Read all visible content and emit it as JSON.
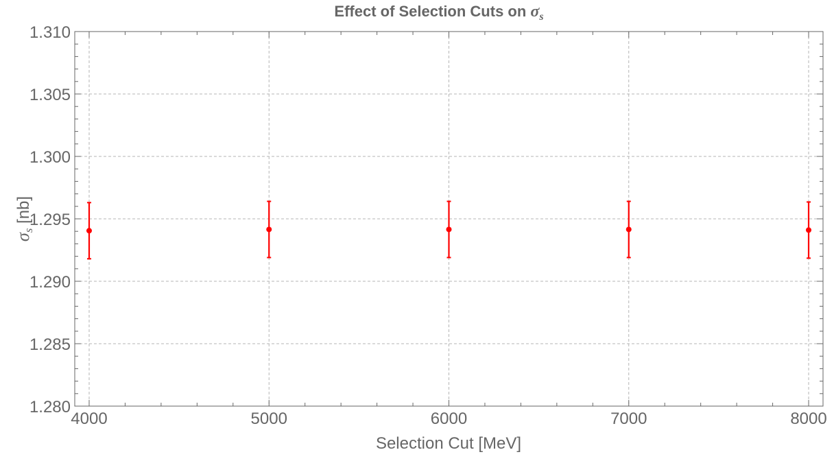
{
  "chart_data": {
    "type": "scatter",
    "title_prefix": "Effect of Selection Cuts on ",
    "title_symbol": "σ",
    "title_subscript": "s",
    "xlabel": "Selection Cut [MeV]",
    "ylabel_symbol": "σ",
    "ylabel_subscript": "s",
    "ylabel_unit": " [nb]",
    "xlim": [
      3920,
      8080
    ],
    "ylim": [
      1.28,
      1.31
    ],
    "x_ticks": [
      4000,
      5000,
      6000,
      7000,
      8000
    ],
    "x_tick_labels": [
      "4000",
      "5000",
      "6000",
      "7000",
      "8000"
    ],
    "y_ticks": [
      1.28,
      1.285,
      1.29,
      1.295,
      1.3,
      1.305,
      1.31
    ],
    "y_tick_labels": [
      "1.280",
      "1.285",
      "1.290",
      "1.295",
      "1.300",
      "1.305",
      "1.310"
    ],
    "grid": true,
    "series": [
      {
        "color": "#ff0000",
        "points": [
          {
            "x": 4000,
            "y": 1.29405,
            "err": 0.00225
          },
          {
            "x": 5000,
            "y": 1.29415,
            "err": 0.00225
          },
          {
            "x": 6000,
            "y": 1.29415,
            "err": 0.00225
          },
          {
            "x": 7000,
            "y": 1.29415,
            "err": 0.00225
          },
          {
            "x": 8000,
            "y": 1.2941,
            "err": 0.00225
          }
        ]
      }
    ],
    "colors": {
      "axis": "#666666",
      "grid": "#b4b4b4",
      "text": "#666666"
    }
  }
}
